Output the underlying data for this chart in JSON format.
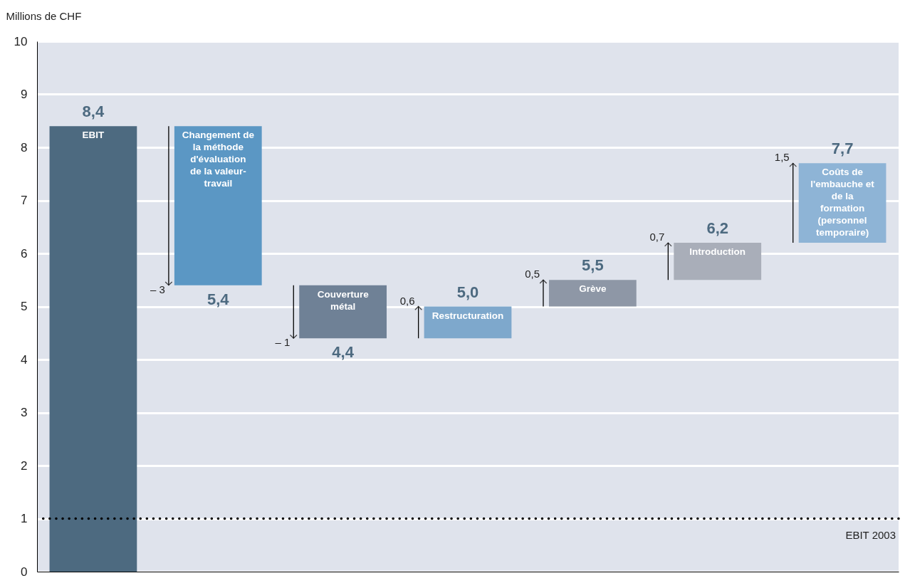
{
  "chart_data": {
    "type": "bar",
    "ylabel": "Millions de CHF",
    "categories": [
      "EBIT",
      "Changement de la méthode d'évaluation de la valeur-travail",
      "Couverture métal",
      "Restructuration",
      "Grève",
      "Introduction",
      "Coûts de l'embauche et de la formation (personnel temporaire)"
    ],
    "base": [
      0,
      8.4,
      5.4,
      4.4,
      5.0,
      5.5,
      6.2
    ],
    "values": [
      8.4,
      -3,
      -1,
      0.6,
      0.5,
      0.7,
      1.5
    ],
    "colors": [
      "#4d6a80",
      "#5b97c4",
      "#6f8196",
      "#7ea8cc",
      "#8e97a6",
      "#a9aeb9",
      "#8eb4d6"
    ],
    "value_labels": [
      null,
      "– 3",
      "– 1",
      "0,6",
      "0,5",
      "0,7",
      "1,5"
    ],
    "annotations": [
      {
        "text": "8,4",
        "x": "EBIT",
        "y": 8.4
      },
      {
        "text": "5,4",
        "x": "Changement de la méthode d'évaluation de la valeur-travail",
        "y": 5.4
      },
      {
        "text": "4,4",
        "x": "Couverture métal",
        "y": 4.4
      },
      {
        "text": "5,0",
        "x": "Restructuration",
        "y": 5.0
      },
      {
        "text": "5,5",
        "x": "Grève",
        "y": 5.5
      },
      {
        "text": "6,2",
        "x": "Introduction",
        "y": 6.2
      },
      {
        "text": "7,7",
        "x": "Coûts de l'embauche et de la formation (personnel temporaire)",
        "y": 7.7
      }
    ],
    "ylim": [
      0,
      10
    ],
    "yticks": [
      0,
      1,
      2,
      3,
      4,
      5,
      6,
      7,
      8,
      9,
      10
    ],
    "ref_lines": [
      {
        "axis": "y",
        "value": 1,
        "label": "EBIT 2003",
        "color": "#000000",
        "line_style": "dotted"
      }
    ],
    "grid": "y",
    "tick_labels": "y"
  }
}
